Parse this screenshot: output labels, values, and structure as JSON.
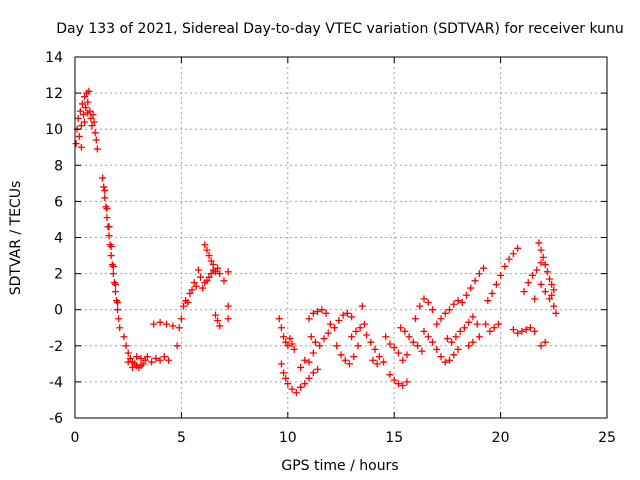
{
  "chart_data": {
    "type": "scatter",
    "title": "Day 133 of 2021, Sidereal Day-to-day VTEC variation (SDTVAR) for receiver kunu",
    "xlabel": "GPS time / hours",
    "ylabel": "SDTVAR / TECUs",
    "xlim": [
      0,
      25
    ],
    "ylim": [
      -6,
      14
    ],
    "xticks": [
      0,
      5,
      10,
      15,
      20,
      25
    ],
    "yticks": [
      -6,
      -4,
      -2,
      0,
      2,
      4,
      6,
      8,
      10,
      12,
      14
    ],
    "grid": true,
    "marker": "+",
    "series": [
      {
        "name": "SDTVAR",
        "color": "#ff0000",
        "points": [
          [
            0.05,
            9.2
          ],
          [
            0.1,
            10.0
          ],
          [
            0.15,
            10.6
          ],
          [
            0.2,
            9.6
          ],
          [
            0.25,
            11.0
          ],
          [
            0.3,
            10.2
          ],
          [
            0.35,
            11.4
          ],
          [
            0.4,
            10.8
          ],
          [
            0.45,
            11.8
          ],
          [
            0.5,
            11.2
          ],
          [
            0.55,
            12.0
          ],
          [
            0.6,
            11.5
          ],
          [
            0.65,
            12.1
          ],
          [
            0.7,
            11.0
          ],
          [
            0.75,
            10.6
          ],
          [
            0.8,
            10.2
          ],
          [
            0.85,
            10.8
          ],
          [
            0.9,
            10.4
          ],
          [
            0.95,
            9.8
          ],
          [
            1.0,
            9.4
          ],
          [
            1.05,
            8.9
          ],
          [
            0.3,
            9.0
          ],
          [
            0.45,
            10.4
          ],
          [
            0.6,
            10.9
          ],
          [
            1.3,
            7.3
          ],
          [
            1.35,
            6.8
          ],
          [
            1.4,
            6.2
          ],
          [
            1.45,
            5.7
          ],
          [
            1.5,
            5.1
          ],
          [
            1.55,
            4.6
          ],
          [
            1.6,
            4.1
          ],
          [
            1.65,
            3.6
          ],
          [
            1.7,
            3.0
          ],
          [
            1.75,
            2.5
          ],
          [
            1.8,
            2.0
          ],
          [
            1.85,
            1.5
          ],
          [
            1.9,
            1.0
          ],
          [
            1.95,
            0.5
          ],
          [
            2.0,
            0.0
          ],
          [
            2.05,
            -0.5
          ],
          [
            2.1,
            -1.0
          ],
          [
            1.4,
            6.6
          ],
          [
            1.5,
            5.6
          ],
          [
            1.6,
            4.6
          ],
          [
            1.7,
            3.5
          ],
          [
            1.8,
            2.4
          ],
          [
            1.9,
            1.4
          ],
          [
            2.0,
            0.4
          ],
          [
            2.3,
            -1.5
          ],
          [
            2.4,
            -2.0
          ],
          [
            2.5,
            -2.4
          ],
          [
            2.6,
            -2.7
          ],
          [
            2.7,
            -2.9
          ],
          [
            2.8,
            -3.0
          ],
          [
            2.9,
            -3.1
          ],
          [
            3.0,
            -3.2
          ],
          [
            3.1,
            -3.1
          ],
          [
            3.2,
            -3.0
          ],
          [
            3.3,
            -2.8
          ],
          [
            3.4,
            -2.6
          ],
          [
            2.5,
            -2.9
          ],
          [
            2.7,
            -3.2
          ],
          [
            2.9,
            -2.6
          ],
          [
            3.1,
            -2.7
          ],
          [
            3.6,
            -2.9
          ],
          [
            3.8,
            -2.7
          ],
          [
            4.0,
            -2.8
          ],
          [
            4.2,
            -2.6
          ],
          [
            4.4,
            -2.8
          ],
          [
            3.7,
            -0.8
          ],
          [
            4.0,
            -0.7
          ],
          [
            4.3,
            -0.8
          ],
          [
            4.6,
            -0.9
          ],
          [
            4.8,
            -2.0
          ],
          [
            4.9,
            -1.0
          ],
          [
            5.0,
            -0.5
          ],
          [
            5.1,
            0.2
          ],
          [
            5.2,
            0.5
          ],
          [
            5.3,
            0.4
          ],
          [
            5.4,
            0.9
          ],
          [
            5.5,
            1.1
          ],
          [
            5.6,
            1.5
          ],
          [
            5.7,
            1.3
          ],
          [
            5.8,
            2.2
          ],
          [
            5.9,
            1.8
          ],
          [
            6.0,
            1.2
          ],
          [
            6.1,
            1.5
          ],
          [
            6.2,
            1.6
          ],
          [
            6.3,
            1.8
          ],
          [
            6.4,
            2.0
          ],
          [
            6.5,
            2.2
          ],
          [
            6.6,
            2.1
          ],
          [
            6.7,
            2.3
          ],
          [
            6.8,
            2.0
          ],
          [
            7.2,
            2.1
          ],
          [
            7.0,
            1.6
          ],
          [
            6.1,
            3.6
          ],
          [
            6.2,
            3.3
          ],
          [
            6.3,
            3.0
          ],
          [
            6.4,
            2.7
          ],
          [
            6.5,
            2.5
          ],
          [
            6.6,
            -0.3
          ],
          [
            6.7,
            -0.6
          ],
          [
            6.8,
            -0.9
          ],
          [
            7.2,
            -0.5
          ],
          [
            7.2,
            0.2
          ],
          [
            9.6,
            -0.5
          ],
          [
            9.7,
            -1.0
          ],
          [
            9.8,
            -1.5
          ],
          [
            9.9,
            -1.8
          ],
          [
            10.0,
            -2.0
          ],
          [
            10.1,
            -1.6
          ],
          [
            10.2,
            -1.9
          ],
          [
            10.3,
            -2.2
          ],
          [
            9.7,
            -3.0
          ],
          [
            9.8,
            -3.5
          ],
          [
            9.9,
            -3.8
          ],
          [
            10.0,
            -4.1
          ],
          [
            10.2,
            -4.4
          ],
          [
            10.4,
            -4.6
          ],
          [
            10.6,
            -4.3
          ],
          [
            10.8,
            -4.1
          ],
          [
            11.0,
            -3.8
          ],
          [
            11.2,
            -3.5
          ],
          [
            11.4,
            -3.3
          ],
          [
            10.6,
            -3.2
          ],
          [
            10.8,
            -2.8
          ],
          [
            11.0,
            -2.9
          ],
          [
            11.2,
            -2.4
          ],
          [
            11.0,
            -0.5
          ],
          [
            11.2,
            -0.2
          ],
          [
            11.4,
            -0.1
          ],
          [
            11.6,
            0.0
          ],
          [
            11.8,
            -0.2
          ],
          [
            11.1,
            -1.5
          ],
          [
            11.3,
            -1.8
          ],
          [
            11.5,
            -2.0
          ],
          [
            11.7,
            -1.6
          ],
          [
            11.9,
            -1.3
          ],
          [
            12.0,
            -0.8
          ],
          [
            12.2,
            -1.0
          ],
          [
            12.4,
            -0.6
          ],
          [
            12.6,
            -0.3
          ],
          [
            12.8,
            -0.2
          ],
          [
            13.0,
            -0.4
          ],
          [
            12.3,
            -2.0
          ],
          [
            12.5,
            -2.5
          ],
          [
            12.7,
            -2.8
          ],
          [
            12.9,
            -3.0
          ],
          [
            13.1,
            -2.6
          ],
          [
            13.3,
            -2.0
          ],
          [
            13.0,
            -1.5
          ],
          [
            13.2,
            -1.2
          ],
          [
            13.4,
            -1.0
          ],
          [
            13.6,
            -0.8
          ],
          [
            13.7,
            -1.4
          ],
          [
            13.9,
            -1.8
          ],
          [
            14.1,
            -2.2
          ],
          [
            14.3,
            -2.6
          ],
          [
            14.5,
            -2.9
          ],
          [
            14.0,
            -2.8
          ],
          [
            14.2,
            -3.0
          ],
          [
            13.5,
            0.2
          ],
          [
            14.6,
            -1.5
          ],
          [
            14.8,
            -1.9
          ],
          [
            15.0,
            -2.1
          ],
          [
            15.2,
            -2.4
          ],
          [
            15.4,
            -2.8
          ],
          [
            15.6,
            -2.5
          ],
          [
            14.8,
            -3.6
          ],
          [
            15.0,
            -3.9
          ],
          [
            15.2,
            -4.1
          ],
          [
            15.4,
            -4.2
          ],
          [
            15.6,
            -4.0
          ],
          [
            15.3,
            -1.0
          ],
          [
            15.5,
            -1.2
          ],
          [
            15.7,
            -1.5
          ],
          [
            15.9,
            -1.8
          ],
          [
            16.1,
            -2.0
          ],
          [
            16.3,
            -2.3
          ],
          [
            16.0,
            -0.5
          ],
          [
            16.2,
            0.2
          ],
          [
            16.4,
            0.6
          ],
          [
            16.6,
            0.4
          ],
          [
            16.8,
            0.0
          ],
          [
            16.4,
            -1.2
          ],
          [
            16.6,
            -1.5
          ],
          [
            16.8,
            -1.8
          ],
          [
            17.0,
            -2.2
          ],
          [
            17.2,
            -2.6
          ],
          [
            17.4,
            -2.9
          ],
          [
            17.6,
            -2.8
          ],
          [
            17.8,
            -2.5
          ],
          [
            18.0,
            -2.2
          ],
          [
            17.0,
            -0.8
          ],
          [
            17.2,
            -0.5
          ],
          [
            17.4,
            -0.2
          ],
          [
            17.6,
            0.0
          ],
          [
            17.8,
            0.3
          ],
          [
            18.0,
            0.5
          ],
          [
            18.2,
            0.4
          ],
          [
            17.5,
            -1.6
          ],
          [
            17.7,
            -1.8
          ],
          [
            17.9,
            -1.5
          ],
          [
            18.1,
            -1.2
          ],
          [
            18.3,
            -1.0
          ],
          [
            18.5,
            -0.7
          ],
          [
            18.7,
            -0.4
          ],
          [
            18.9,
            -0.8
          ],
          [
            18.4,
            0.8
          ],
          [
            18.6,
            1.2
          ],
          [
            18.8,
            1.6
          ],
          [
            19.0,
            2.0
          ],
          [
            19.2,
            2.3
          ],
          [
            18.5,
            -2.0
          ],
          [
            18.7,
            -1.8
          ],
          [
            19.0,
            -1.5
          ],
          [
            19.3,
            -0.8
          ],
          [
            19.5,
            -1.2
          ],
          [
            19.7,
            -1.0
          ],
          [
            19.9,
            -0.8
          ],
          [
            19.4,
            0.5
          ],
          [
            19.6,
            0.9
          ],
          [
            19.8,
            1.4
          ],
          [
            20.0,
            1.9
          ],
          [
            20.2,
            2.4
          ],
          [
            20.4,
            2.8
          ],
          [
            20.6,
            3.1
          ],
          [
            20.8,
            3.4
          ],
          [
            21.0,
            -1.2
          ],
          [
            21.2,
            -1.1
          ],
          [
            21.4,
            -1.0
          ],
          [
            20.6,
            -1.1
          ],
          [
            20.8,
            -1.3
          ],
          [
            21.6,
            -1.2
          ],
          [
            21.1,
            1.0
          ],
          [
            21.3,
            1.5
          ],
          [
            21.5,
            1.9
          ],
          [
            21.7,
            2.2
          ],
          [
            21.9,
            2.6
          ],
          [
            21.6,
            0.6
          ],
          [
            22.4,
            0.8
          ],
          [
            21.8,
            3.7
          ],
          [
            21.9,
            3.3
          ],
          [
            22.0,
            2.9
          ],
          [
            22.1,
            2.5
          ],
          [
            22.2,
            2.1
          ],
          [
            22.3,
            1.7
          ],
          [
            22.4,
            1.4
          ],
          [
            22.5,
            1.1
          ],
          [
            21.9,
            1.4
          ],
          [
            22.1,
            1.0
          ],
          [
            22.3,
            0.6
          ],
          [
            22.5,
            0.2
          ],
          [
            22.6,
            -0.2
          ],
          [
            21.9,
            -2.0
          ],
          [
            22.1,
            -1.8
          ]
        ]
      }
    ]
  }
}
